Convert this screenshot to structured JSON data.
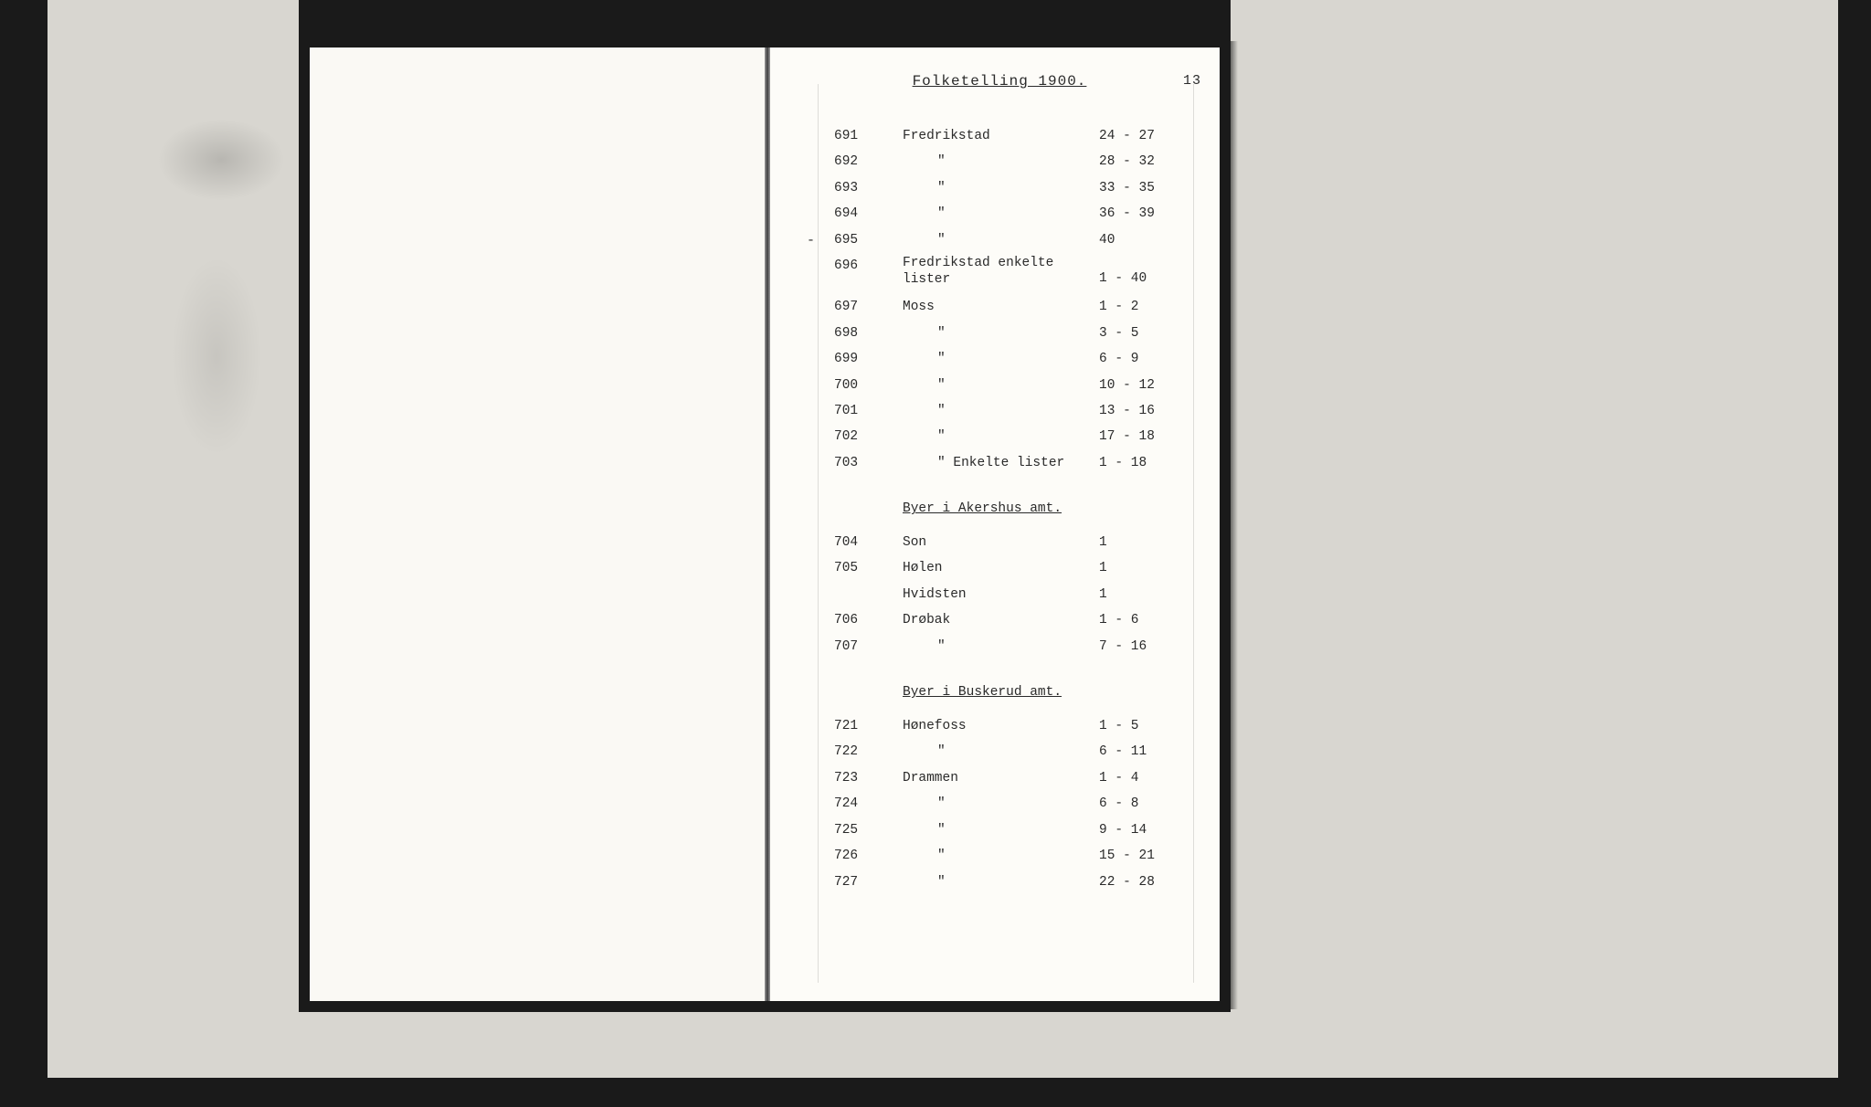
{
  "header": {
    "title": "Folketelling 1900.",
    "page_number": "13"
  },
  "sections": [
    {
      "rows": [
        {
          "num": "691",
          "name": "Fredrikstad",
          "range": "24 - 27"
        },
        {
          "num": "692",
          "name": "\"",
          "range": "28 - 32",
          "ditto": true
        },
        {
          "num": "693",
          "name": "\"",
          "range": "33 - 35",
          "ditto": true
        },
        {
          "num": "694",
          "name": "\"",
          "range": "36 - 39",
          "ditto": true
        },
        {
          "num": "695",
          "name": "\"",
          "range": "40",
          "ditto": true,
          "dash": true
        },
        {
          "num": "696",
          "name": "Fredrikstad enkelte lister",
          "range": "1 - 40",
          "wrap": true
        },
        {
          "num": "697",
          "name": "Moss",
          "range": "1 - 2"
        },
        {
          "num": "698",
          "name": "\"",
          "range": "3 - 5",
          "ditto": true
        },
        {
          "num": "699",
          "name": "\"",
          "range": "6 - 9",
          "ditto": true
        },
        {
          "num": "700",
          "name": "\"",
          "range": "10 - 12",
          "ditto": true
        },
        {
          "num": "701",
          "name": "\"",
          "range": "13 - 16",
          "ditto": true
        },
        {
          "num": "702",
          "name": "\"",
          "range": "17 - 18",
          "ditto": true
        },
        {
          "num": "703",
          "name": "\"    Enkelte lister",
          "range": "1 - 18",
          "ditto": true
        }
      ]
    },
    {
      "heading": "Byer i Akershus amt.",
      "rows": [
        {
          "num": "704",
          "name": "Son",
          "range": "1"
        },
        {
          "num": "705",
          "name": "Hølen",
          "range": "1"
        },
        {
          "num": "",
          "name": "Hvidsten",
          "range": "1"
        },
        {
          "num": "706",
          "name": "Drøbak",
          "range": "1 - 6"
        },
        {
          "num": "707",
          "name": "\"",
          "range": "7 - 16",
          "ditto": true
        }
      ]
    },
    {
      "heading": "Byer i Buskerud amt.",
      "rows": [
        {
          "num": "721",
          "name": "Hønefoss",
          "range": "1 - 5"
        },
        {
          "num": "722",
          "name": "\"",
          "range": "6 - 11",
          "ditto": true
        },
        {
          "num": "723",
          "name": "Drammen",
          "range": "1 - 4"
        },
        {
          "num": "724",
          "name": "\"",
          "range": "6 - 8",
          "ditto": true
        },
        {
          "num": "725",
          "name": "\"",
          "range": "9 - 14",
          "ditto": true
        },
        {
          "num": "726",
          "name": "\"",
          "range": "15 - 21",
          "ditto": true
        },
        {
          "num": "727",
          "name": "\"",
          "range": "22 - 28",
          "ditto": true
        }
      ]
    }
  ]
}
